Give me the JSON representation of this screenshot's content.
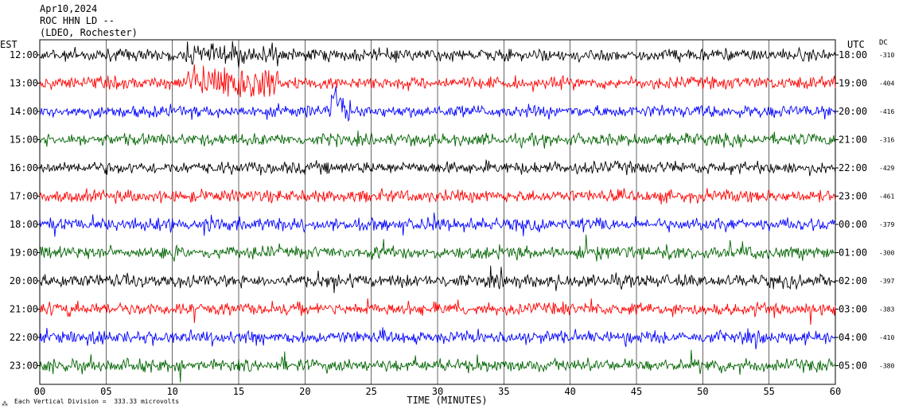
{
  "header": {
    "date": "Apr10,2024",
    "station": "ROC HHN LD --",
    "network": "(LDEO, Rochester)",
    "left_tz": "EST",
    "right_tz": "UTC",
    "dc_label": "DC"
  },
  "footer": {
    "scale_note": "Each Vertical Division =  333.33 microvolts"
  },
  "chart_data": {
    "type": "line",
    "title": "",
    "xlabel": "TIME (MINUTES)",
    "ylabel": "",
    "xlim": [
      0,
      60
    ],
    "x_ticks": [
      "00",
      "05",
      "10",
      "15",
      "20",
      "25",
      "30",
      "35",
      "40",
      "45",
      "50",
      "55",
      "60"
    ],
    "grid": true,
    "trace_colors": [
      "#000000",
      "#ff0000",
      "#0000ff",
      "#006400"
    ],
    "series": [
      {
        "local": "12:00",
        "utc": "18:00",
        "dc": "-310",
        "color": "#000000"
      },
      {
        "local": "13:00",
        "utc": "19:00",
        "dc": "-404",
        "color": "#ff0000"
      },
      {
        "local": "14:00",
        "utc": "20:00",
        "dc": "-416",
        "color": "#0000ff"
      },
      {
        "local": "15:00",
        "utc": "21:00",
        "dc": "-316",
        "color": "#006400"
      },
      {
        "local": "16:00",
        "utc": "22:00",
        "dc": "-429",
        "color": "#000000"
      },
      {
        "local": "17:00",
        "utc": "23:00",
        "dc": "-461",
        "color": "#ff0000"
      },
      {
        "local": "18:00",
        "utc": "00:00",
        "dc": "-379",
        "color": "#0000ff"
      },
      {
        "local": "19:00",
        "utc": "01:00",
        "dc": "-300",
        "color": "#006400"
      },
      {
        "local": "20:00",
        "utc": "02:00",
        "dc": "-397",
        "color": "#000000"
      },
      {
        "local": "21:00",
        "utc": "03:00",
        "dc": "-383",
        "color": "#ff0000"
      },
      {
        "local": "22:00",
        "utc": "04:00",
        "dc": "-410",
        "color": "#0000ff"
      },
      {
        "local": "23:00",
        "utc": "05:00",
        "dc": "-380",
        "color": "#006400"
      }
    ]
  }
}
